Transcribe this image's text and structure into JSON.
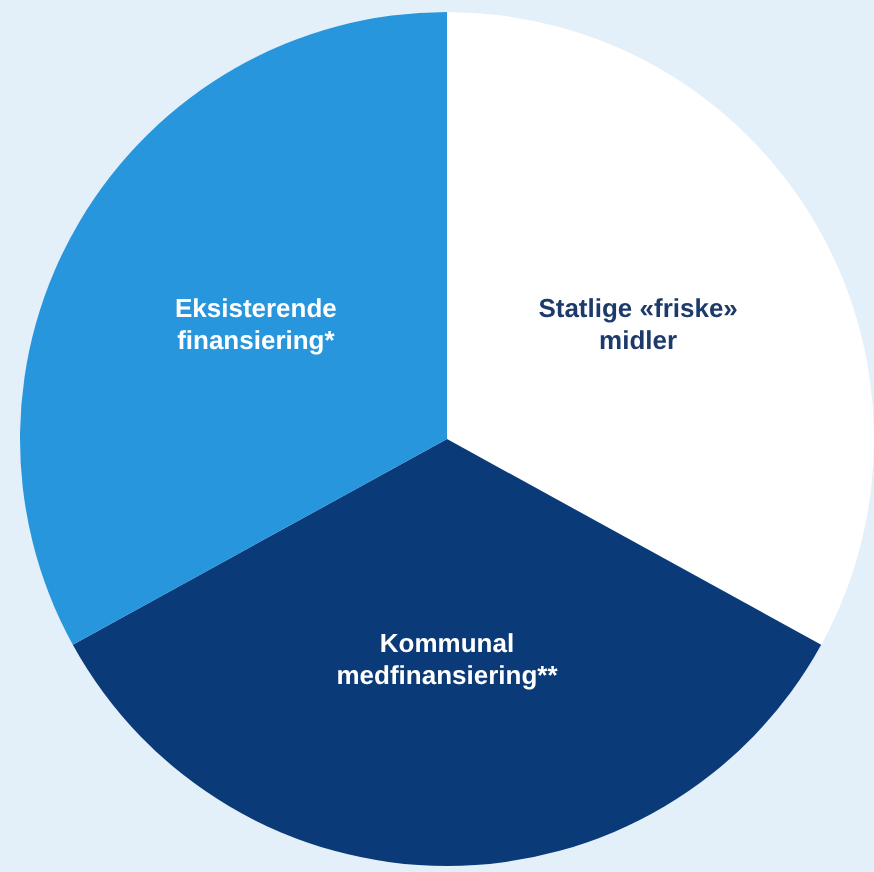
{
  "chart_data": {
    "type": "pie",
    "categories": [
      "Statlige «friske» midler",
      "Kommunal medfinansiering**",
      "Eksisterende finansiering*"
    ],
    "values": [
      33,
      34,
      33
    ],
    "colors": [
      "#ffffff",
      "#0a3a78",
      "#2796dc"
    ],
    "legend": false
  }
}
